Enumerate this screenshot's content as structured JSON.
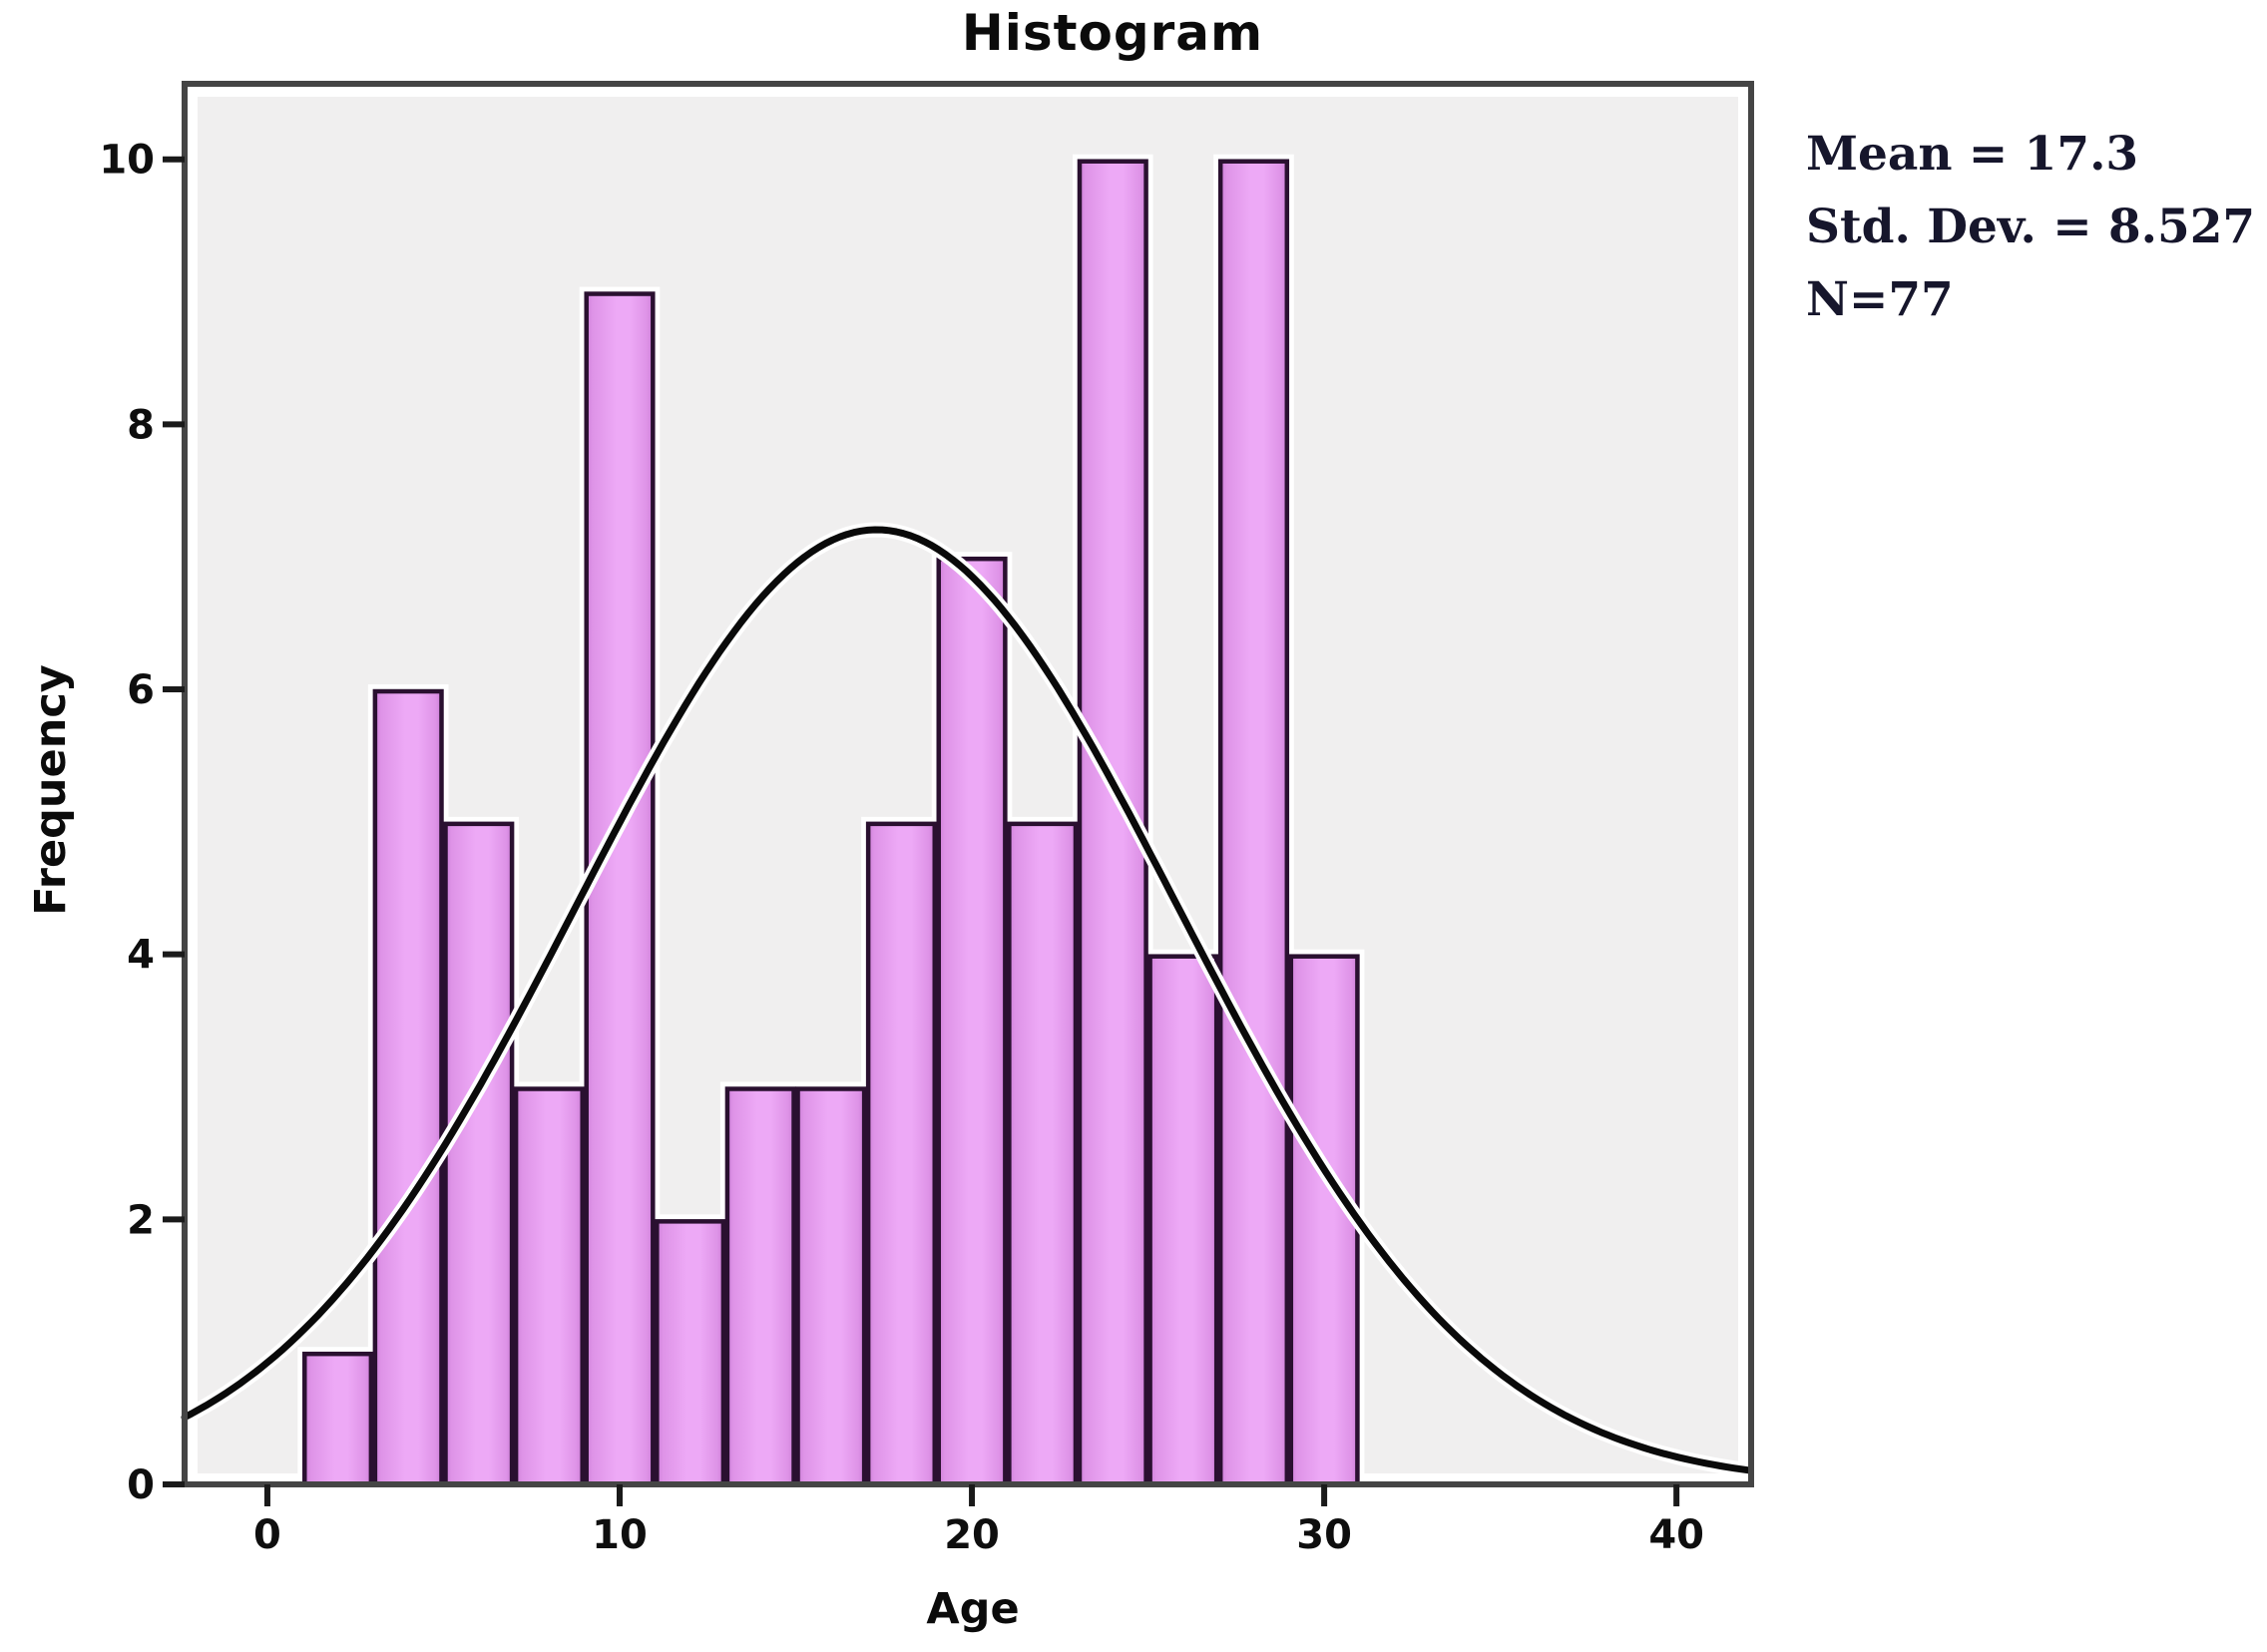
{
  "chart": {
    "title": "Histogram",
    "x_axis_label": "Age",
    "y_axis_label": "Frequency",
    "stats_box": {
      "line1": "Mean = 17.3",
      "line2": "Std. Dev. = 8.527",
      "line3": "N=77"
    }
  },
  "chart_data": {
    "type": "bar",
    "subtype": "histogram",
    "title": "Histogram",
    "xlabel": "Age",
    "ylabel": "Frequency",
    "bin_width": 2,
    "bin_edges": [
      1,
      3,
      5,
      7,
      9,
      11,
      13,
      15,
      17,
      19,
      21,
      23,
      25,
      27,
      29,
      31
    ],
    "frequencies": [
      1,
      6,
      5,
      3,
      9,
      2,
      3,
      3,
      5,
      7,
      5,
      10,
      4,
      10,
      4
    ],
    "x_ticks": [
      0,
      10,
      20,
      30,
      40
    ],
    "y_ticks": [
      0,
      2,
      4,
      6,
      8,
      10
    ],
    "xlim": [
      -2.35,
      42.12
    ],
    "ylim": [
      0,
      10.57
    ],
    "grid": false,
    "legend": "none",
    "normal_curve": {
      "mean": 17.3,
      "std_dev": 8.527,
      "n": 77,
      "bin_width": 2
    },
    "stats_annotation": {
      "mean": 17.3,
      "std_dev": 8.527,
      "n": 77
    },
    "colors": {
      "plot_background": "#f0efef",
      "frame": "#454545",
      "tick": "#1a1a1a",
      "bar_fill_center": "#eda9f6",
      "bar_fill_mid": "#de93e7",
      "bar_fill_edge": "#cd7fd8",
      "bar_border": "#2a1030",
      "bar_halo": "#ffffff",
      "curve": "#0a0a0a",
      "curve_casing": "#ffffff",
      "text": "#0e0e0e",
      "stats_text": "#16162c"
    }
  }
}
